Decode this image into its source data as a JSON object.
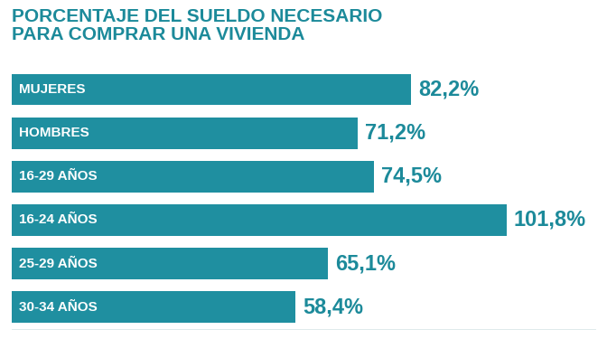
{
  "chart_data": {
    "type": "bar",
    "orientation": "horizontal",
    "title": "PORCENTAJE DEL SUELDO NECESARIO\nPARA COMPRAR UNA VIVIENDA",
    "categories": [
      "MUJERES",
      "HOMBRES",
      "16-29 AÑOS",
      "16-24 AÑOS",
      "25-29 AÑOS",
      "30-34 AÑOS"
    ],
    "values": [
      82.2,
      71.2,
      74.5,
      101.8,
      65.1,
      58.4
    ],
    "value_labels": [
      "82,2%",
      "71,2%",
      "74,5%",
      "101,8%",
      "65,1%",
      "58,4%"
    ],
    "data_labels": true,
    "tick_labels": false,
    "color": "#1f8fa0",
    "xlim": [
      0,
      120
    ],
    "xticks": []
  }
}
